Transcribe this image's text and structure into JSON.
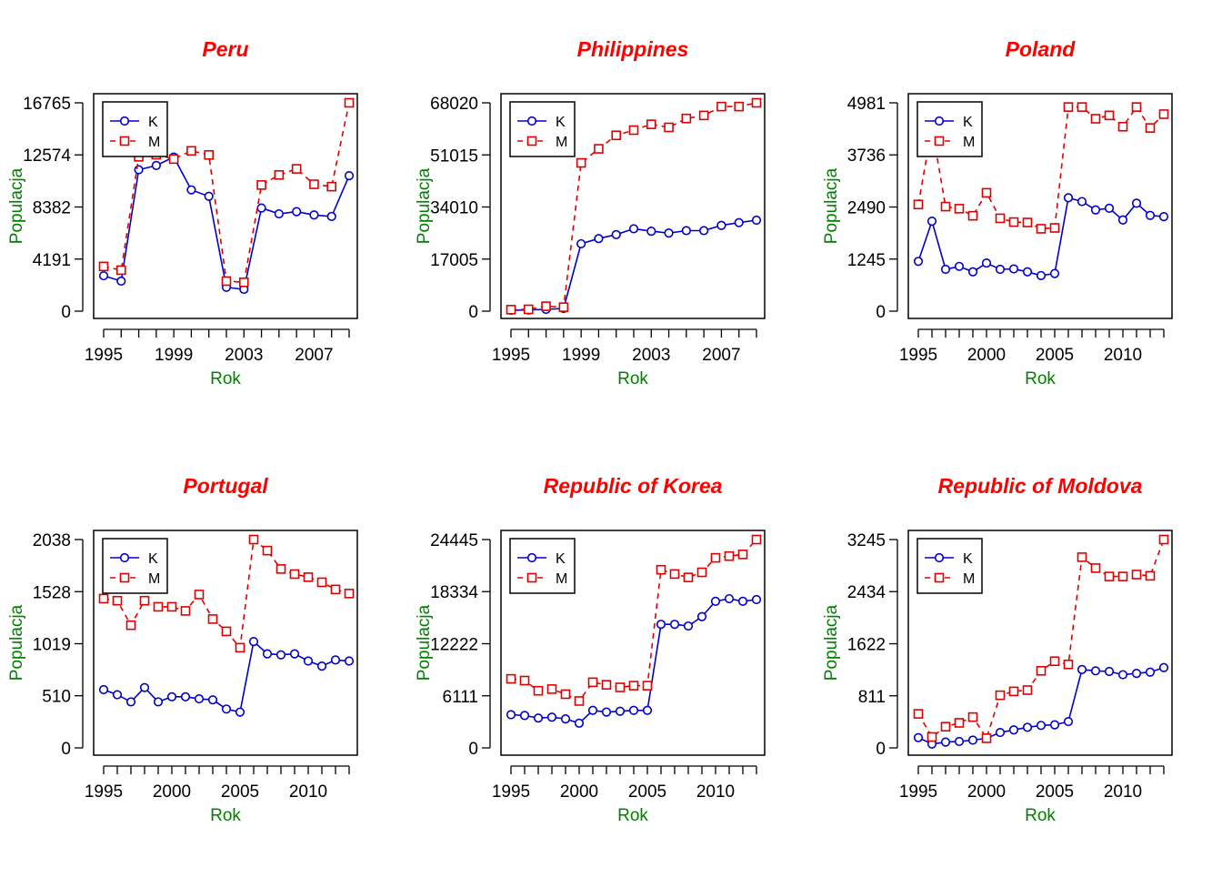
{
  "colors": {
    "K": "#0000CC",
    "M": "#DD0000",
    "title": "#FF0000",
    "axis_label": "#008000"
  },
  "legend": {
    "labels": [
      "K",
      "M"
    ],
    "placement": "top-left"
  },
  "chart_data": [
    {
      "type": "line",
      "title": "Peru",
      "xlabel": "Rok",
      "ylabel": "Populacja",
      "x": [
        1995,
        1996,
        1997,
        1998,
        1999,
        2000,
        2001,
        2002,
        2003,
        2004,
        2005,
        2006,
        2007,
        2008,
        2009
      ],
      "xticks": [
        1995,
        1999,
        2003,
        2007
      ],
      "yticks": [
        0,
        4191,
        8382,
        12574,
        16765
      ],
      "ylim": [
        0,
        16765
      ],
      "series": [
        {
          "name": "K",
          "values": [
            2850,
            2420,
            11380,
            11720,
            12400,
            9760,
            9240,
            1920,
            1760,
            8300,
            7830,
            8010,
            7740,
            7620,
            10900
          ]
        },
        {
          "name": "M",
          "values": [
            3600,
            3300,
            12420,
            12590,
            12240,
            12900,
            12570,
            2420,
            2320,
            10150,
            10960,
            11450,
            10210,
            10020,
            16765
          ]
        }
      ]
    },
    {
      "type": "line",
      "title": "Philippines",
      "xlabel": "Rok",
      "ylabel": "Populacja",
      "x": [
        1995,
        1996,
        1997,
        1998,
        1999,
        2000,
        2001,
        2002,
        2003,
        2004,
        2005,
        2006,
        2007,
        2008,
        2009
      ],
      "xticks": [
        1995,
        1999,
        2003,
        2007
      ],
      "yticks": [
        0,
        17005,
        34010,
        51015,
        68020
      ],
      "ylim": [
        0,
        68020
      ],
      "series": [
        {
          "name": "K",
          "values": [
            300,
            400,
            600,
            900,
            22000,
            23700,
            25000,
            26900,
            26100,
            25500,
            26300,
            26300,
            28000,
            28900,
            29700
          ]
        },
        {
          "name": "M",
          "values": [
            500,
            600,
            1600,
            1300,
            48400,
            53000,
            57400,
            59100,
            61000,
            60000,
            62900,
            63900,
            66800,
            66800,
            68020
          ]
        }
      ]
    },
    {
      "type": "line",
      "title": "Poland",
      "xlabel": "Rok",
      "ylabel": "Populacja",
      "x": [
        1995,
        1996,
        1997,
        1998,
        1999,
        2000,
        2001,
        2002,
        2003,
        2004,
        2005,
        2006,
        2007,
        2008,
        2009,
        2010,
        2011,
        2012,
        2013
      ],
      "xticks": [
        1995,
        2000,
        2005,
        2010
      ],
      "yticks": [
        0,
        1245,
        2490,
        3736,
        4981
      ],
      "ylim": [
        0,
        4981
      ],
      "series": [
        {
          "name": "K",
          "values": [
            1190,
            2150,
            1000,
            1070,
            940,
            1150,
            1000,
            1010,
            940,
            850,
            900,
            2710,
            2620,
            2420,
            2460,
            2180,
            2580,
            2290,
            2260
          ]
        },
        {
          "name": "M",
          "values": [
            2550,
            4400,
            2500,
            2450,
            2280,
            2830,
            2220,
            2130,
            2120,
            1970,
            1990,
            4880,
            4880,
            4600,
            4680,
            4410,
            4880,
            4380,
            4710
          ]
        }
      ]
    },
    {
      "type": "line",
      "title": "Portugal",
      "xlabel": "Rok",
      "ylabel": "Populacja",
      "x": [
        1995,
        1996,
        1997,
        1998,
        1999,
        2000,
        2001,
        2002,
        2003,
        2004,
        2005,
        2006,
        2007,
        2008,
        2009,
        2010,
        2011,
        2012,
        2013
      ],
      "xticks": [
        1995,
        2000,
        2005,
        2010
      ],
      "yticks": [
        0,
        510,
        1019,
        1528,
        2038
      ],
      "ylim": [
        0,
        2038
      ],
      "series": [
        {
          "name": "K",
          "values": [
            570,
            520,
            450,
            590,
            450,
            500,
            500,
            480,
            470,
            380,
            350,
            1040,
            920,
            910,
            920,
            850,
            800,
            860,
            850
          ]
        },
        {
          "name": "M",
          "values": [
            1460,
            1440,
            1200,
            1440,
            1380,
            1380,
            1340,
            1500,
            1260,
            1140,
            980,
            2038,
            1930,
            1750,
            1700,
            1670,
            1620,
            1550,
            1510
          ]
        }
      ]
    },
    {
      "type": "line",
      "title": "Republic of Korea",
      "xlabel": "Rok",
      "ylabel": "Populacja",
      "x": [
        1995,
        1996,
        1997,
        1998,
        1999,
        2000,
        2001,
        2002,
        2003,
        2004,
        2005,
        2006,
        2007,
        2008,
        2009,
        2010,
        2011,
        2012,
        2013
      ],
      "xticks": [
        1995,
        2000,
        2005,
        2010
      ],
      "yticks": [
        0,
        6111,
        12222,
        18334,
        24445
      ],
      "ylim": [
        0,
        24445
      ],
      "series": [
        {
          "name": "K",
          "values": [
            3900,
            3800,
            3500,
            3600,
            3400,
            2900,
            4400,
            4200,
            4300,
            4400,
            4400,
            14500,
            14500,
            14300,
            15400,
            17200,
            17500,
            17200,
            17400
          ]
        },
        {
          "name": "M",
          "values": [
            8100,
            7900,
            6700,
            6900,
            6300,
            5500,
            7700,
            7400,
            7100,
            7300,
            7300,
            20900,
            20400,
            20000,
            20600,
            22300,
            22500,
            22700,
            24445
          ]
        }
      ]
    },
    {
      "type": "line",
      "title": "Republic of Moldova",
      "xlabel": "Rok",
      "ylabel": "Populacja",
      "x": [
        1995,
        1996,
        1997,
        1998,
        1999,
        2000,
        2001,
        2002,
        2003,
        2004,
        2005,
        2006,
        2007,
        2008,
        2009,
        2010,
        2011,
        2012,
        2013
      ],
      "xticks": [
        1995,
        2000,
        2005,
        2010
      ],
      "yticks": [
        0,
        811,
        1622,
        2434,
        3245
      ],
      "ylim": [
        0,
        3245
      ],
      "series": [
        {
          "name": "K",
          "values": [
            160,
            60,
            90,
            100,
            120,
            150,
            240,
            280,
            320,
            350,
            360,
            410,
            1220,
            1200,
            1190,
            1140,
            1160,
            1180,
            1250
          ]
        },
        {
          "name": "M",
          "values": [
            530,
            170,
            330,
            390,
            480,
            150,
            820,
            880,
            900,
            1200,
            1350,
            1300,
            2970,
            2800,
            2670,
            2670,
            2700,
            2680,
            3245
          ]
        }
      ]
    }
  ]
}
